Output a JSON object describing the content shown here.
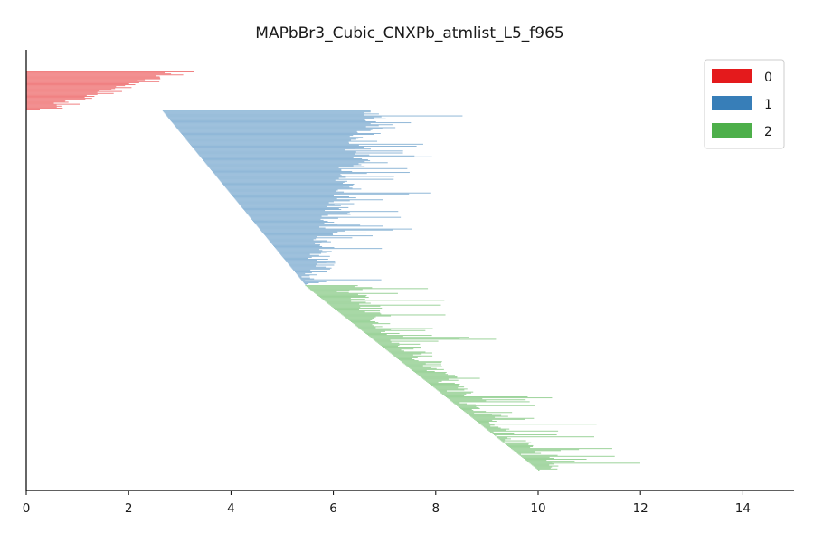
{
  "chart_data": {
    "type": "bar",
    "orientation": "horizontal",
    "title": "MAPbBr3_Cubic_CNXPb_atmlist_L5_f965",
    "xlabel": "",
    "ylabel": "",
    "xlim": [
      0,
      15
    ],
    "xticks": [
      0,
      2,
      4,
      6,
      8,
      10,
      12,
      14
    ],
    "grid": false,
    "y_axis_ticks": false,
    "legend": {
      "position": "top-right",
      "entries": [
        "0",
        "1",
        "2"
      ]
    },
    "series": [
      {
        "name": "0",
        "color": "#e41a1c",
        "bar_count": 40,
        "start_range": [
          0.0,
          0.0
        ],
        "end_range": [
          3.1,
          0.4
        ]
      },
      {
        "name": "1",
        "color": "#377eb8",
        "bar_count": 180,
        "start_range": [
          2.65,
          5.45
        ],
        "end_range": [
          6.8,
          5.6
        ]
      },
      {
        "name": "2",
        "color": "#4daf4a",
        "bar_count": 190,
        "start_range": [
          5.45,
          10.0
        ],
        "end_range": [
          6.2,
          10.2
        ]
      }
    ]
  }
}
